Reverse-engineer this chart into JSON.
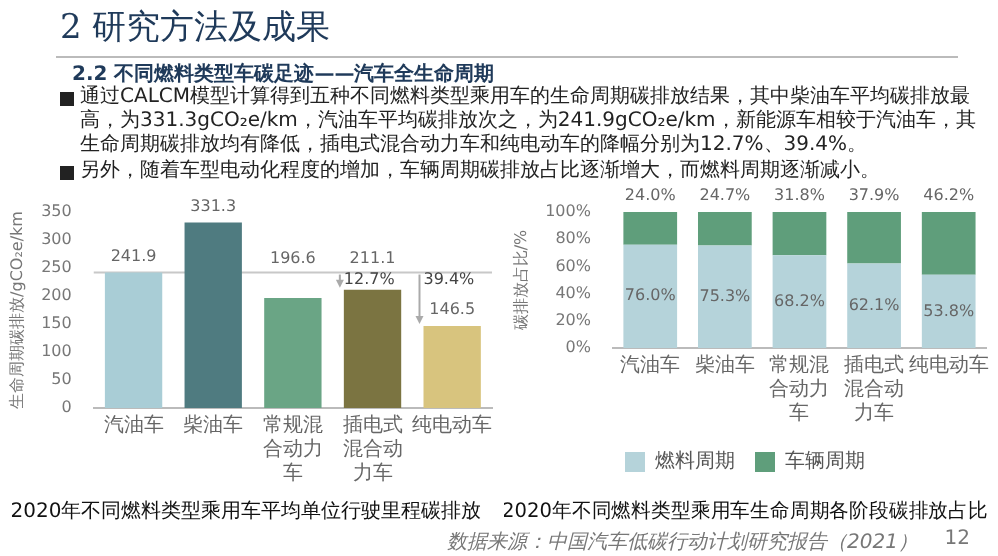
{
  "chart_data": [
    {
      "type": "other",
      "title": "2 研究方法及成果",
      "subtitle": "2.2 不同燃料类型车碳足迹——汽车全生命周期",
      "annotations": [
        "通过CALCM模型计算得到五种不同燃料类型乘用车的生命周期碳排放结果，其中柴油车平均碳排放最高，为331.3gCO₂e/km，汽油车平均碳排放次之，为241.9gCO₂e/km，新能源车相较于汽油车，其生命周期碳排放均有降低，插电式混合动力车和纯电动车的降幅分别为12.7%、39.4%。",
        "另外，随着车型电动化程度的增加，车辆周期碳排放占比逐渐增大，而燃料周期逐渐减小。",
        "数据来源：中国汽车低碳行动计划研究报告（2021）",
        "12"
      ]
    },
    {
      "type": "bar",
      "title": "2020年不同燃料类型乘用车平均单位行驶里程碳排放",
      "ylabel": "生命周期碳排放/gCO₂e/km",
      "categories": [
        "汽油车",
        "柴油车",
        "常规混合动力车",
        "插电式混合动力车",
        "纯电动车"
      ],
      "values": [
        241.9,
        331.3,
        196.6,
        211.1,
        146.5
      ],
      "colors": [
        "#a9cdd6",
        "#4f7b80",
        "#6aa585",
        "#7b7441",
        "#d8c47e"
      ],
      "ylim": [
        0,
        350
      ],
      "yticks": [
        0,
        50,
        100,
        150,
        200,
        250,
        300,
        350
      ],
      "data_labels": true,
      "ref_lines": [
        {
          "axis": "y",
          "value": 241.9,
          "color": "#c8c8c8"
        }
      ],
      "annotations": [
        {
          "text": "12.7%",
          "x": "插电式混合动力车",
          "y": 228
        },
        {
          "text": "39.4%",
          "x": "纯电动车",
          "y": 228
        }
      ],
      "grid": false,
      "legend": false
    },
    {
      "type": "bar",
      "title": "2020年不同燃料类型乘用车生命周期各阶段碳排放占比",
      "ylabel": "碳排放占比/%",
      "stacked": true,
      "categories": [
        "汽油车",
        "柴油车",
        "常规混合动力车",
        "插电式混合动力车",
        "纯电动车"
      ],
      "series": [
        {
          "name": "燃料周期",
          "color": "#b5d3da",
          "values": [
            76.0,
            75.3,
            68.2,
            62.1,
            53.8
          ],
          "value_labels": [
            "76.0%",
            "75.3%",
            "68.2%",
            "62.1%",
            "53.8%"
          ]
        },
        {
          "name": "车辆周期",
          "color": "#5f9e7b",
          "values": [
            24.0,
            24.7,
            31.8,
            37.9,
            46.2
          ],
          "value_labels": [
            "24.0%",
            "24.7%",
            "31.8%",
            "37.9%",
            "46.2%"
          ]
        }
      ],
      "ylim": [
        0,
        100
      ],
      "yticks": [
        {
          "value": 0,
          "label": "0%"
        },
        {
          "value": 20,
          "label": "20%"
        },
        {
          "value": 40,
          "label": "40%"
        },
        {
          "value": 60,
          "label": "60%"
        },
        {
          "value": 80,
          "label": "80%"
        },
        {
          "value": 100,
          "label": "100%"
        }
      ],
      "grid": false,
      "legend": "bottom"
    }
  ]
}
